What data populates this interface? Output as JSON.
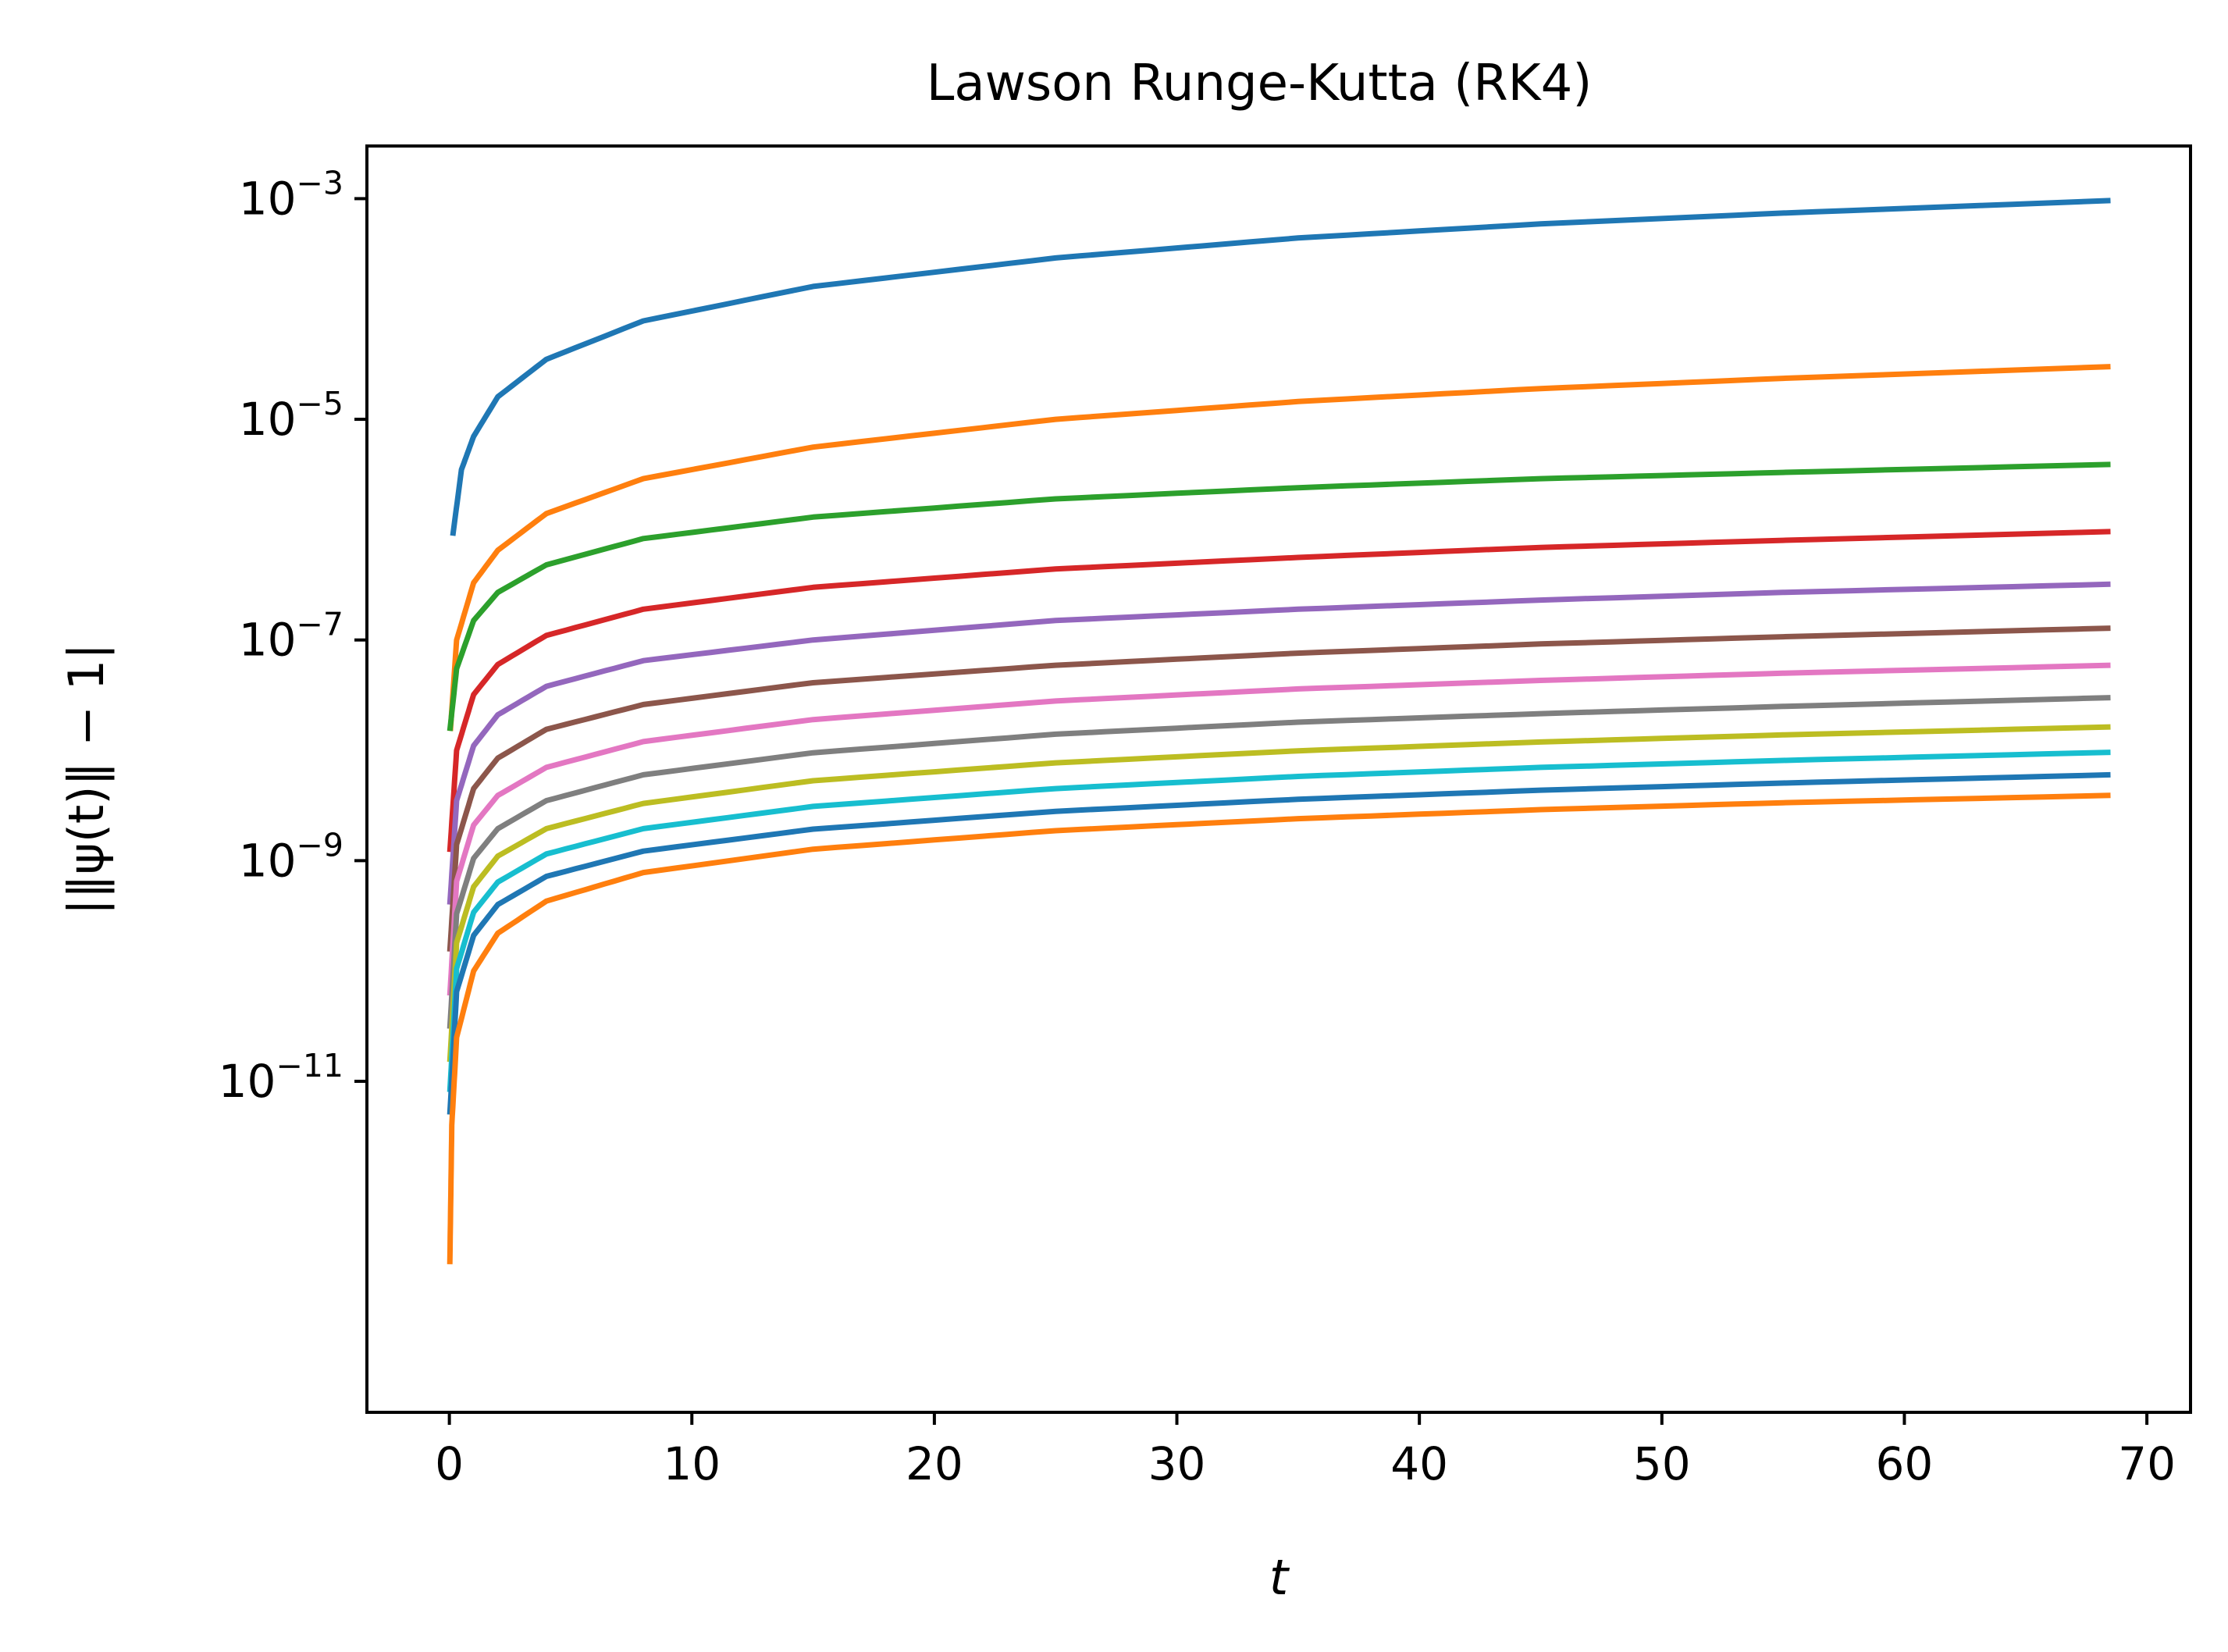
{
  "chart_data": {
    "type": "line",
    "title": "Lawson Runge-Kutta (RK4)",
    "xlabel": "t",
    "ylabel": "|‖ψ(t)‖ − 1|",
    "yscale": "log",
    "xlim": [
      -3.4,
      71.8
    ],
    "ylim": [
      1e-14,
      0.003
    ],
    "x_ticks": [
      0,
      10,
      20,
      30,
      40,
      50,
      60,
      70
    ],
    "x_tick_labels": [
      "0",
      "10",
      "20",
      "30",
      "40",
      "50",
      "60",
      "70"
    ],
    "y_ticks": [
      1e-11,
      1e-09,
      1e-07,
      1e-05,
      0.001
    ],
    "y_tick_labels": [
      {
        "base": "10",
        "exp": "−11"
      },
      {
        "base": "10",
        "exp": "−9"
      },
      {
        "base": "10",
        "exp": "−7"
      },
      {
        "base": "10",
        "exp": "−5"
      },
      {
        "base": "10",
        "exp": "−3"
      }
    ],
    "grid": false,
    "legend": "none",
    "series": [
      {
        "color": "#1f77b4",
        "points": [
          [
            0.14,
            8.8e-07
          ],
          [
            0.5,
            3.5e-06
          ],
          [
            1,
            7e-06
          ],
          [
            2,
            1.6e-05
          ],
          [
            4,
            3.5e-05
          ],
          [
            8,
            7.8e-05
          ],
          [
            15,
            0.00016
          ],
          [
            25,
            0.00029
          ],
          [
            35,
            0.00044
          ],
          [
            45,
            0.00059
          ],
          [
            55,
            0.00074
          ],
          [
            68.5,
            0.00096
          ]
        ]
      },
      {
        "color": "#ff7f0e",
        "points": [
          [
            0.04,
            1.5e-08
          ],
          [
            0.3,
            1e-07
          ],
          [
            1,
            3.3e-07
          ],
          [
            2,
            6.5e-07
          ],
          [
            4,
            1.4e-06
          ],
          [
            8,
            2.9e-06
          ],
          [
            15,
            5.6e-06
          ],
          [
            25,
            1e-05
          ],
          [
            35,
            1.45e-05
          ],
          [
            45,
            1.9e-05
          ],
          [
            55,
            2.35e-05
          ],
          [
            68.5,
            3e-05
          ]
        ]
      },
      {
        "color": "#2ca02c",
        "points": [
          [
            0.02,
            1.5e-08
          ],
          [
            0.3,
            5.5e-08
          ],
          [
            1,
            1.5e-07
          ],
          [
            2,
            2.7e-07
          ],
          [
            4,
            4.8e-07
          ],
          [
            8,
            8.3e-07
          ],
          [
            15,
            1.3e-06
          ],
          [
            25,
            1.9e-06
          ],
          [
            35,
            2.4e-06
          ],
          [
            45,
            2.9e-06
          ],
          [
            55,
            3.3e-06
          ],
          [
            68.5,
            3.9e-06
          ]
        ]
      },
      {
        "color": "#d62728",
        "points": [
          [
            0.02,
            1.2e-09
          ],
          [
            0.3,
            1e-08
          ],
          [
            1,
            3.2e-08
          ],
          [
            2,
            6e-08
          ],
          [
            4,
            1.1e-07
          ],
          [
            8,
            1.9e-07
          ],
          [
            15,
            3e-07
          ],
          [
            25,
            4.4e-07
          ],
          [
            35,
            5.6e-07
          ],
          [
            45,
            6.9e-07
          ],
          [
            55,
            8e-07
          ],
          [
            68.5,
            9.6e-07
          ]
        ]
      },
      {
        "color": "#9467bd",
        "points": [
          [
            0.02,
            4e-10
          ],
          [
            0.3,
            3.5e-09
          ],
          [
            1,
            1.1e-08
          ],
          [
            2,
            2.1e-08
          ],
          [
            4,
            3.8e-08
          ],
          [
            8,
            6.5e-08
          ],
          [
            15,
            1e-07
          ],
          [
            25,
            1.5e-07
          ],
          [
            35,
            1.9e-07
          ],
          [
            45,
            2.3e-07
          ],
          [
            55,
            2.7e-07
          ],
          [
            68.5,
            3.2e-07
          ]
        ]
      },
      {
        "color": "#8c564b",
        "points": [
          [
            0.02,
            1.5e-10
          ],
          [
            0.3,
            1.4e-09
          ],
          [
            1,
            4.5e-09
          ],
          [
            2,
            8.5e-09
          ],
          [
            4,
            1.55e-08
          ],
          [
            8,
            2.6e-08
          ],
          [
            15,
            4.1e-08
          ],
          [
            25,
            5.9e-08
          ],
          [
            35,
            7.6e-08
          ],
          [
            45,
            9.2e-08
          ],
          [
            55,
            1.07e-07
          ],
          [
            68.5,
            1.28e-07
          ]
        ]
      },
      {
        "color": "#e377c2",
        "points": [
          [
            0.02,
            6e-11
          ],
          [
            0.3,
            6.5e-10
          ],
          [
            1,
            2.1e-09
          ],
          [
            2,
            3.9e-09
          ],
          [
            4,
            7e-09
          ],
          [
            8,
            1.2e-08
          ],
          [
            15,
            1.9e-08
          ],
          [
            25,
            2.8e-08
          ],
          [
            35,
            3.6e-08
          ],
          [
            45,
            4.3e-08
          ],
          [
            55,
            5e-08
          ],
          [
            68.5,
            5.9e-08
          ]
        ]
      },
      {
        "color": "#7f7f7f",
        "points": [
          [
            0.02,
            3e-11
          ],
          [
            0.3,
            3.3e-10
          ],
          [
            1,
            1.05e-09
          ],
          [
            2,
            1.95e-09
          ],
          [
            4,
            3.5e-09
          ],
          [
            8,
            6e-09
          ],
          [
            15,
            9.5e-09
          ],
          [
            25,
            1.4e-08
          ],
          [
            35,
            1.8e-08
          ],
          [
            45,
            2.15e-08
          ],
          [
            55,
            2.5e-08
          ],
          [
            68.5,
            3e-08
          ]
        ]
      },
      {
        "color": "#bcbd22",
        "points": [
          [
            0.02,
            1.5e-11
          ],
          [
            0.3,
            1.8e-10
          ],
          [
            1,
            5.8e-10
          ],
          [
            2,
            1.1e-09
          ],
          [
            4,
            1.95e-09
          ],
          [
            8,
            3.3e-09
          ],
          [
            15,
            5.3e-09
          ],
          [
            25,
            7.7e-09
          ],
          [
            35,
            9.9e-09
          ],
          [
            45,
            1.19e-08
          ],
          [
            55,
            1.38e-08
          ],
          [
            68.5,
            1.63e-08
          ]
        ]
      },
      {
        "color": "#17becf",
        "points": [
          [
            0.02,
            8e-12
          ],
          [
            0.3,
            1.05e-10
          ],
          [
            1,
            3.4e-10
          ],
          [
            2,
            6.4e-10
          ],
          [
            4,
            1.15e-09
          ],
          [
            8,
            1.95e-09
          ],
          [
            15,
            3.1e-09
          ],
          [
            25,
            4.5e-09
          ],
          [
            35,
            5.8e-09
          ],
          [
            45,
            7e-09
          ],
          [
            55,
            8.1e-09
          ],
          [
            68.5,
            9.6e-09
          ]
        ]
      },
      {
        "color": "#1f77b4",
        "points": [
          [
            0.02,
            5e-12
          ],
          [
            0.3,
            6.5e-11
          ],
          [
            1,
            2.1e-10
          ],
          [
            2,
            4e-10
          ],
          [
            4,
            7.2e-10
          ],
          [
            8,
            1.22e-09
          ],
          [
            15,
            1.93e-09
          ],
          [
            25,
            2.8e-09
          ],
          [
            35,
            3.6e-09
          ],
          [
            45,
            4.35e-09
          ],
          [
            55,
            5.05e-09
          ],
          [
            68.5,
            6e-09
          ]
        ]
      },
      {
        "color": "#ff7f0e",
        "points": [
          [
            0.02,
            2.2e-13
          ],
          [
            0.1,
            4e-12
          ],
          [
            0.3,
            2.5e-11
          ],
          [
            1,
            1e-10
          ],
          [
            2,
            2.2e-10
          ],
          [
            4,
            4.3e-10
          ],
          [
            8,
            7.8e-10
          ],
          [
            15,
            1.27e-09
          ],
          [
            25,
            1.87e-09
          ],
          [
            35,
            2.4e-09
          ],
          [
            45,
            2.9e-09
          ],
          [
            55,
            3.35e-09
          ],
          [
            68.5,
            3.9e-09
          ]
        ]
      }
    ]
  }
}
